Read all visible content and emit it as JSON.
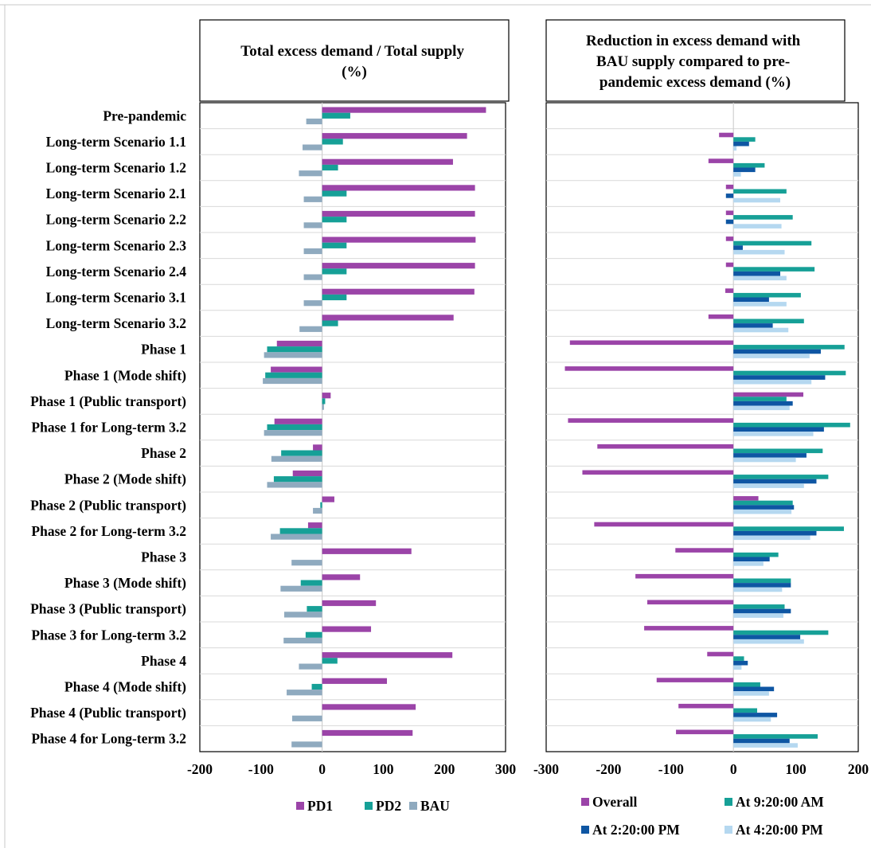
{
  "row_labels": [
    "Pre-pandemic",
    "Long-term Scenario 1.1",
    "Long-term Scenario 1.2",
    "Long-term Scenario 2.1",
    "Long-term Scenario 2.2",
    "Long-term Scenario 2.3",
    "Long-term Scenario 2.4",
    "Long-term Scenario 3.1",
    "Long-term Scenario 3.2",
    "Phase 1",
    "Phase 1 (Mode shift)",
    "Phase 1 (Public transport)",
    "Phase 1 for Long-term 3.2",
    "Phase 2",
    "Phase 2 (Mode shift)",
    "Phase 2 (Public transport)",
    "Phase 2 for Long-term 3.2",
    "Phase 3",
    "Phase 3 (Mode shift)",
    "Phase 3 (Public transport)",
    "Phase 3 for Long-term  3.2",
    "Phase 4",
    "Phase 4 (Mode shift)",
    "Phase 4 (Public transport)",
    "Phase 4 for Long-term 3.2"
  ],
  "chart_data": [
    {
      "type": "bar",
      "orientation": "horizontal",
      "title": "Total excess demand / Total supply (%)",
      "xlim": [
        -200,
        300
      ],
      "xticks": [
        "-200",
        "-100",
        "0",
        "100",
        "200",
        "300"
      ],
      "grid": false,
      "legend_position": "bottom",
      "colors": {
        "PD1": "#9b44a8",
        "PD2": "#16a097",
        "BAU": "#8faabf"
      },
      "series": [
        {
          "name": "PD1",
          "values": [
            268,
            237,
            214,
            250,
            250,
            251,
            250,
            249,
            215,
            -74,
            -84,
            14,
            -78,
            -15,
            -48,
            20,
            -23,
            146,
            62,
            88,
            80,
            213,
            106,
            153,
            148
          ]
        },
        {
          "name": "PD2",
          "values": [
            46,
            34,
            26,
            40,
            40,
            40,
            40,
            40,
            26,
            -90,
            -93,
            5,
            -90,
            -67,
            -79,
            -3,
            -69,
            0,
            -35,
            -25,
            -27,
            25,
            -17,
            0,
            0
          ]
        },
        {
          "name": "BAU",
          "values": [
            -26,
            -32,
            -38,
            -30,
            -30,
            -30,
            -30,
            -30,
            -37,
            -95,
            -97,
            3,
            -95,
            -83,
            -90,
            -15,
            -84,
            -50,
            -68,
            -62,
            -63,
            -38,
            -58,
            -49,
            -50
          ]
        }
      ]
    },
    {
      "type": "bar",
      "orientation": "horizontal",
      "title": "Reduction in excess demand with BAU supply compared to pre-pandemic excess demand (%)",
      "xlim": [
        -300,
        200
      ],
      "xticks": [
        "-300",
        "-200",
        "-100",
        "0",
        "100",
        "200"
      ],
      "grid": false,
      "legend_position": "bottom",
      "colors": {
        "Overall": "#9b44a8",
        "At 9:20:00 AM": "#16a097",
        "At 2:20:00 PM": "#0e56a3",
        "At 4:20:00 PM": "#b5d8f0"
      },
      "series": [
        {
          "name": "Overall",
          "values": [
            0,
            -23,
            -40,
            -12,
            -12,
            -12,
            -12,
            -13,
            -40,
            -262,
            -270,
            112,
            -265,
            -218,
            -242,
            40,
            -223,
            -93,
            -157,
            -138,
            -143,
            -42,
            -123,
            -88,
            -92
          ]
        },
        {
          "name": "At 9:20:00 AM",
          "values": [
            0,
            35,
            50,
            85,
            95,
            125,
            130,
            108,
            113,
            178,
            180,
            85,
            187,
            143,
            152,
            95,
            177,
            72,
            92,
            82,
            152,
            17,
            43,
            38,
            135
          ]
        },
        {
          "name": "At 2:20:00 PM",
          "values": [
            0,
            25,
            35,
            -12,
            -12,
            15,
            75,
            57,
            63,
            140,
            147,
            95,
            145,
            117,
            133,
            97,
            133,
            58,
            92,
            92,
            107,
            23,
            65,
            70,
            90
          ]
        },
        {
          "name": "At 4:20:00 PM",
          "values": [
            0,
            5,
            12,
            75,
            77,
            82,
            85,
            85,
            88,
            122,
            125,
            90,
            128,
            100,
            113,
            93,
            123,
            48,
            78,
            80,
            113,
            13,
            57,
            60,
            103
          ]
        }
      ]
    }
  ]
}
